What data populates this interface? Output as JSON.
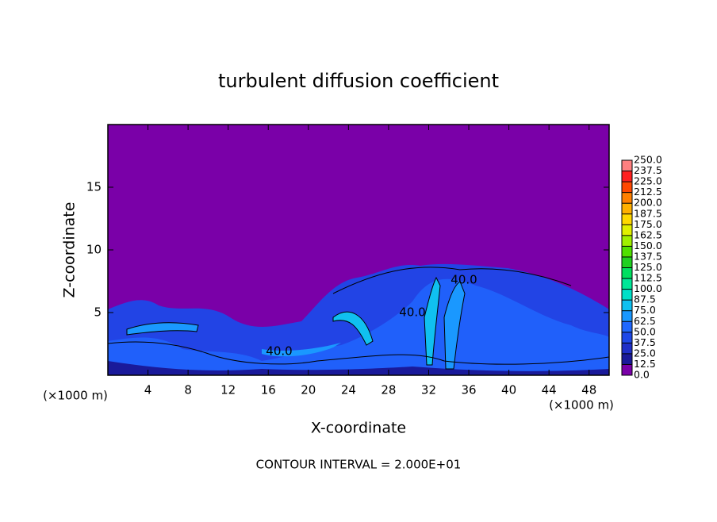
{
  "chart_data": {
    "type": "contour",
    "title": "turbulent diffusion coefficient",
    "xlabel": "X-coordinate",
    "ylabel": "Z-coordinate",
    "x_unit": "(×1000 m)",
    "y_unit": "(×1000 m)",
    "footer": "CONTOUR INTERVAL = 2.000E+01",
    "xlim": [
      0,
      50
    ],
    "xticks": [
      4,
      8,
      12,
      16,
      20,
      24,
      28,
      32,
      36,
      40,
      44,
      48
    ],
    "ylim": [
      0,
      20
    ],
    "yticks": [
      5,
      10,
      15
    ],
    "contour_labels": [
      "40.0",
      "40.0",
      "40.0"
    ],
    "colorbar": {
      "levels": [
        {
          "value": 0,
          "label": "0.0"
        },
        12.5,
        {
          "value": 25,
          "label": "25.0"
        },
        37.5,
        {
          "value": 50,
          "label": "50.0"
        },
        62.5,
        {
          "value": 75,
          "label": "75.0"
        },
        87.5,
        {
          "value": 100,
          "label": "100.0"
        },
        112.5,
        {
          "value": 125,
          "label": "125.0"
        },
        137.5,
        {
          "value": 150,
          "label": "150.0"
        },
        162.5,
        {
          "value": 175,
          "label": "175.0"
        },
        187.5,
        {
          "value": 200,
          "label": "200.0"
        },
        212.5,
        {
          "value": 225,
          "label": "225.0"
        },
        237.5,
        {
          "value": 250,
          "label": "250.0"
        }
      ],
      "colors": [
        "#7a00a8",
        "#1a1a9a",
        "#1f2fc8",
        "#1e48e8",
        "#2068ff",
        "#1a98ff",
        "#10c0f0",
        "#00e0c8",
        "#00e898",
        "#00e060",
        "#20d020",
        "#50e000",
        "#a0f000",
        "#e0f000",
        "#ffd800",
        "#ffb000",
        "#ff8000",
        "#ff4800",
        "#ff2020",
        "#ff8080"
      ]
    }
  }
}
